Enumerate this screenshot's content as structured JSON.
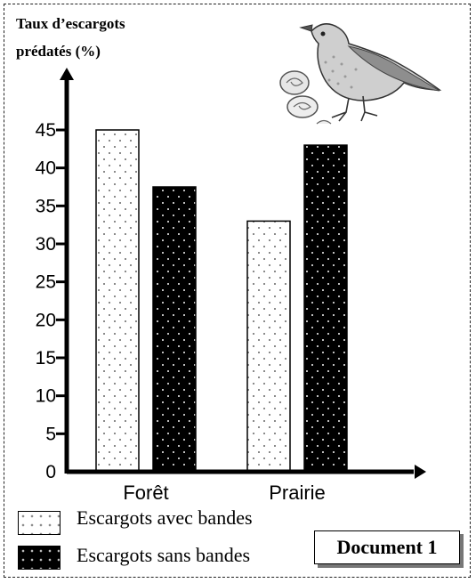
{
  "chart_data": {
    "type": "bar",
    "ylabel_lines": [
      "Taux d’escargots",
      "prédatés (%)"
    ],
    "categories": [
      "Forêt",
      "Prairie"
    ],
    "series": [
      {
        "name": "Escargots avec bandes",
        "pattern": "dotted",
        "fill": "#ffffff",
        "values": [
          45,
          33
        ]
      },
      {
        "name": "Escargots sans bandes",
        "pattern": "dark",
        "fill": "#000000",
        "values": [
          37.5,
          43
        ]
      }
    ],
    "yticks": [
      0,
      5,
      10,
      15,
      20,
      25,
      30,
      35,
      40,
      45
    ],
    "ylim": [
      0,
      45
    ],
    "grid": false,
    "legend_position": "bottom-left"
  },
  "document_label": "Document 1",
  "illustration_icon": "bird-with-snail-shells-icon"
}
